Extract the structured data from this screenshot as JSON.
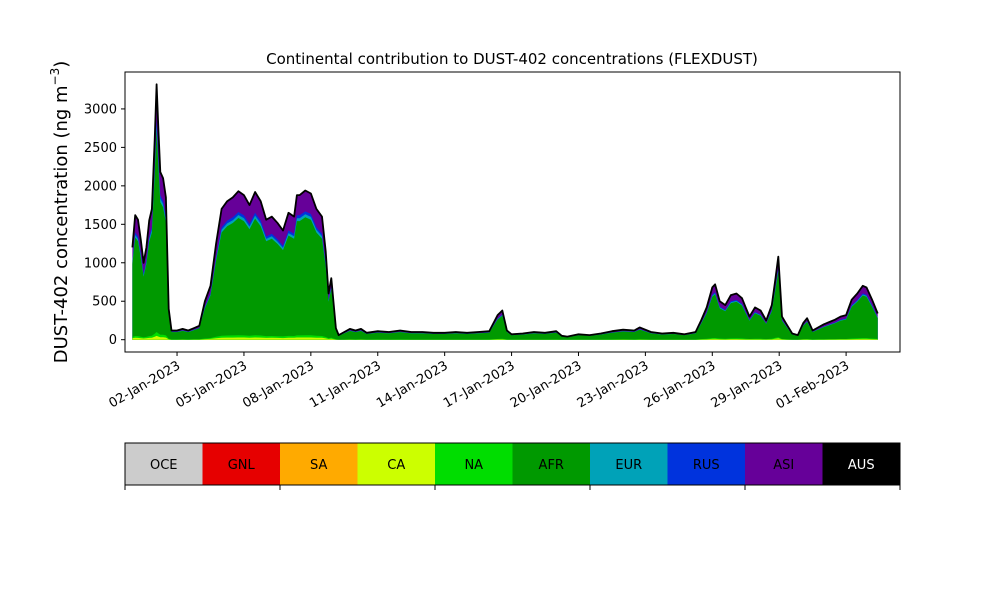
{
  "chart_data": {
    "type": "area",
    "title": "Continental contribution to DUST-402 concentrations (FLEXDUST)",
    "ylabel": "DUST-402 concentration (ng m",
    "ylabel_sup": "−3",
    "ylabel_close": ")",
    "xlabel": "",
    "ylim": [
      -160,
      3480
    ],
    "xlim": [
      "2022-12-30T16:00",
      "2023-02-03T10:00"
    ],
    "yticks": [
      0,
      500,
      1000,
      1500,
      2000,
      2500,
      3000
    ],
    "xticks": [
      "2023-01-02",
      "2023-01-05",
      "2023-01-08",
      "2023-01-11",
      "2023-01-14",
      "2023-01-17",
      "2023-01-20",
      "2023-01-23",
      "2023-01-26",
      "2023-01-29",
      "2023-02-01"
    ],
    "xtick_labels": [
      "02-Jan-2023",
      "05-Jan-2023",
      "08-Jan-2023",
      "11-Jan-2023",
      "14-Jan-2023",
      "17-Jan-2023",
      "20-Jan-2023",
      "23-Jan-2023",
      "26-Jan-2023",
      "29-Jan-2023",
      "01-Feb-2023"
    ],
    "grid": false,
    "total": {
      "color": "#000000",
      "points": [
        [
          "2022-12-31T00:00",
          1200
        ],
        [
          "2022-12-31T03:00",
          1620
        ],
        [
          "2022-12-31T06:00",
          1560
        ],
        [
          "2022-12-31T09:00",
          1300
        ],
        [
          "2022-12-31T12:00",
          1000
        ],
        [
          "2022-12-31T15:00",
          1200
        ],
        [
          "2022-12-31T18:00",
          1550
        ],
        [
          "2022-12-31T21:00",
          1700
        ],
        [
          "2023-01-01T00:00",
          2600
        ],
        [
          "2023-01-01T02:00",
          3320
        ],
        [
          "2023-01-01T04:00",
          2700
        ],
        [
          "2023-01-01T06:00",
          2180
        ],
        [
          "2023-01-01T09:00",
          2100
        ],
        [
          "2023-01-01T12:00",
          1850
        ],
        [
          "2023-01-01T15:00",
          400
        ],
        [
          "2023-01-01T18:00",
          120
        ],
        [
          "2023-01-02T00:00",
          120
        ],
        [
          "2023-01-02T06:00",
          140
        ],
        [
          "2023-01-02T12:00",
          120
        ],
        [
          "2023-01-02T18:00",
          150
        ],
        [
          "2023-01-03T00:00",
          180
        ],
        [
          "2023-01-03T06:00",
          500
        ],
        [
          "2023-01-03T12:00",
          700
        ],
        [
          "2023-01-03T18:00",
          1250
        ],
        [
          "2023-01-04T00:00",
          1700
        ],
        [
          "2023-01-04T06:00",
          1800
        ],
        [
          "2023-01-04T12:00",
          1850
        ],
        [
          "2023-01-04T18:00",
          1930
        ],
        [
          "2023-01-05T00:00",
          1880
        ],
        [
          "2023-01-05T06:00",
          1750
        ],
        [
          "2023-01-05T12:00",
          1920
        ],
        [
          "2023-01-05T18:00",
          1800
        ],
        [
          "2023-01-06T00:00",
          1560
        ],
        [
          "2023-01-06T06:00",
          1600
        ],
        [
          "2023-01-06T12:00",
          1520
        ],
        [
          "2023-01-06T18:00",
          1420
        ],
        [
          "2023-01-07T00:00",
          1650
        ],
        [
          "2023-01-07T06:00",
          1600
        ],
        [
          "2023-01-07T09:00",
          1880
        ],
        [
          "2023-01-07T12:00",
          1880
        ],
        [
          "2023-01-07T18:00",
          1940
        ],
        [
          "2023-01-08T00:00",
          1900
        ],
        [
          "2023-01-08T06:00",
          1700
        ],
        [
          "2023-01-08T12:00",
          1600
        ],
        [
          "2023-01-08T16:00",
          1150
        ],
        [
          "2023-01-08T19:00",
          600
        ],
        [
          "2023-01-08T22:00",
          800
        ],
        [
          "2023-01-09T03:00",
          150
        ],
        [
          "2023-01-09T06:00",
          60
        ],
        [
          "2023-01-09T12:00",
          100
        ],
        [
          "2023-01-09T18:00",
          140
        ],
        [
          "2023-01-10T00:00",
          120
        ],
        [
          "2023-01-10T06:00",
          140
        ],
        [
          "2023-01-10T12:00",
          90
        ],
        [
          "2023-01-11T00:00",
          110
        ],
        [
          "2023-01-11T12:00",
          100
        ],
        [
          "2023-01-12T00:00",
          120
        ],
        [
          "2023-01-12T12:00",
          100
        ],
        [
          "2023-01-13T00:00",
          100
        ],
        [
          "2023-01-13T12:00",
          90
        ],
        [
          "2023-01-14T00:00",
          90
        ],
        [
          "2023-01-14T12:00",
          100
        ],
        [
          "2023-01-15T00:00",
          90
        ],
        [
          "2023-01-15T12:00",
          100
        ],
        [
          "2023-01-16T00:00",
          110
        ],
        [
          "2023-01-16T09:00",
          320
        ],
        [
          "2023-01-16T14:00",
          380
        ],
        [
          "2023-01-16T19:00",
          120
        ],
        [
          "2023-01-17T00:00",
          70
        ],
        [
          "2023-01-17T12:00",
          80
        ],
        [
          "2023-01-18T00:00",
          100
        ],
        [
          "2023-01-18T12:00",
          90
        ],
        [
          "2023-01-19T00:00",
          110
        ],
        [
          "2023-01-19T06:00",
          50
        ],
        [
          "2023-01-19T12:00",
          40
        ],
        [
          "2023-01-20T00:00",
          70
        ],
        [
          "2023-01-20T12:00",
          60
        ],
        [
          "2023-01-21T00:00",
          80
        ],
        [
          "2023-01-21T12:00",
          110
        ],
        [
          "2023-01-22T00:00",
          130
        ],
        [
          "2023-01-22T12:00",
          120
        ],
        [
          "2023-01-22T18:00",
          160
        ],
        [
          "2023-01-23T06:00",
          100
        ],
        [
          "2023-01-23T18:00",
          80
        ],
        [
          "2023-01-24T06:00",
          90
        ],
        [
          "2023-01-24T18:00",
          70
        ],
        [
          "2023-01-25T06:00",
          100
        ],
        [
          "2023-01-25T12:00",
          250
        ],
        [
          "2023-01-25T18:00",
          420
        ],
        [
          "2023-01-26T00:00",
          680
        ],
        [
          "2023-01-26T03:00",
          720
        ],
        [
          "2023-01-26T08:00",
          500
        ],
        [
          "2023-01-26T14:00",
          450
        ],
        [
          "2023-01-26T20:00",
          580
        ],
        [
          "2023-01-27T02:00",
          600
        ],
        [
          "2023-01-27T08:00",
          540
        ],
        [
          "2023-01-27T12:00",
          420
        ],
        [
          "2023-01-27T16:00",
          300
        ],
        [
          "2023-01-27T22:00",
          420
        ],
        [
          "2023-01-28T04:00",
          380
        ],
        [
          "2023-01-28T10:00",
          250
        ],
        [
          "2023-01-28T16:00",
          450
        ],
        [
          "2023-01-28T20:00",
          800
        ],
        [
          "2023-01-28T23:00",
          1080
        ],
        [
          "2023-01-29T03:00",
          300
        ],
        [
          "2023-01-29T08:00",
          200
        ],
        [
          "2023-01-29T14:00",
          80
        ],
        [
          "2023-01-29T20:00",
          60
        ],
        [
          "2023-01-30T02:00",
          220
        ],
        [
          "2023-01-30T06:00",
          280
        ],
        [
          "2023-01-30T12:00",
          120
        ],
        [
          "2023-01-30T18:00",
          160
        ],
        [
          "2023-01-31T00:00",
          200
        ],
        [
          "2023-01-31T06:00",
          230
        ],
        [
          "2023-01-31T12:00",
          260
        ],
        [
          "2023-01-31T18:00",
          300
        ],
        [
          "2023-02-01T00:00",
          320
        ],
        [
          "2023-02-01T06:00",
          520
        ],
        [
          "2023-02-01T12:00",
          600
        ],
        [
          "2023-02-01T18:00",
          700
        ],
        [
          "2023-02-01T22:00",
          680
        ],
        [
          "2023-02-02T04:00",
          520
        ],
        [
          "2023-02-02T10:00",
          340
        ]
      ]
    },
    "series": [
      {
        "name": "ASI",
        "color": "#660099",
        "fraction_of_total": 1.0
      },
      {
        "name": "RUS",
        "color": "#0033dd",
        "fraction_of_total": 0.86
      },
      {
        "name": "EUR",
        "color": "#00a2b8",
        "fraction_of_total": 0.84
      },
      {
        "name": "AFR",
        "color": "#009900",
        "fraction_of_total": 0.82
      },
      {
        "name": "NA",
        "color": "#00dd00",
        "fraction_of_total": 0.03
      },
      {
        "name": "CA",
        "color": "#ccff00",
        "fraction_of_total": 0.015
      }
    ],
    "legend": {
      "placement": "bottom",
      "items": [
        {
          "label": "OCE",
          "color": "#cccccc"
        },
        {
          "label": "GNL",
          "color": "#e60000"
        },
        {
          "label": "SA",
          "color": "#ffaa00"
        },
        {
          "label": "CA",
          "color": "#ccff00"
        },
        {
          "label": "NA",
          "color": "#00dd00"
        },
        {
          "label": "AFR",
          "color": "#009900"
        },
        {
          "label": "EUR",
          "color": "#00a2b8"
        },
        {
          "label": "RUS",
          "color": "#0033dd"
        },
        {
          "label": "ASI",
          "color": "#660099"
        },
        {
          "label": "AUS",
          "color": "#000000"
        }
      ]
    }
  }
}
